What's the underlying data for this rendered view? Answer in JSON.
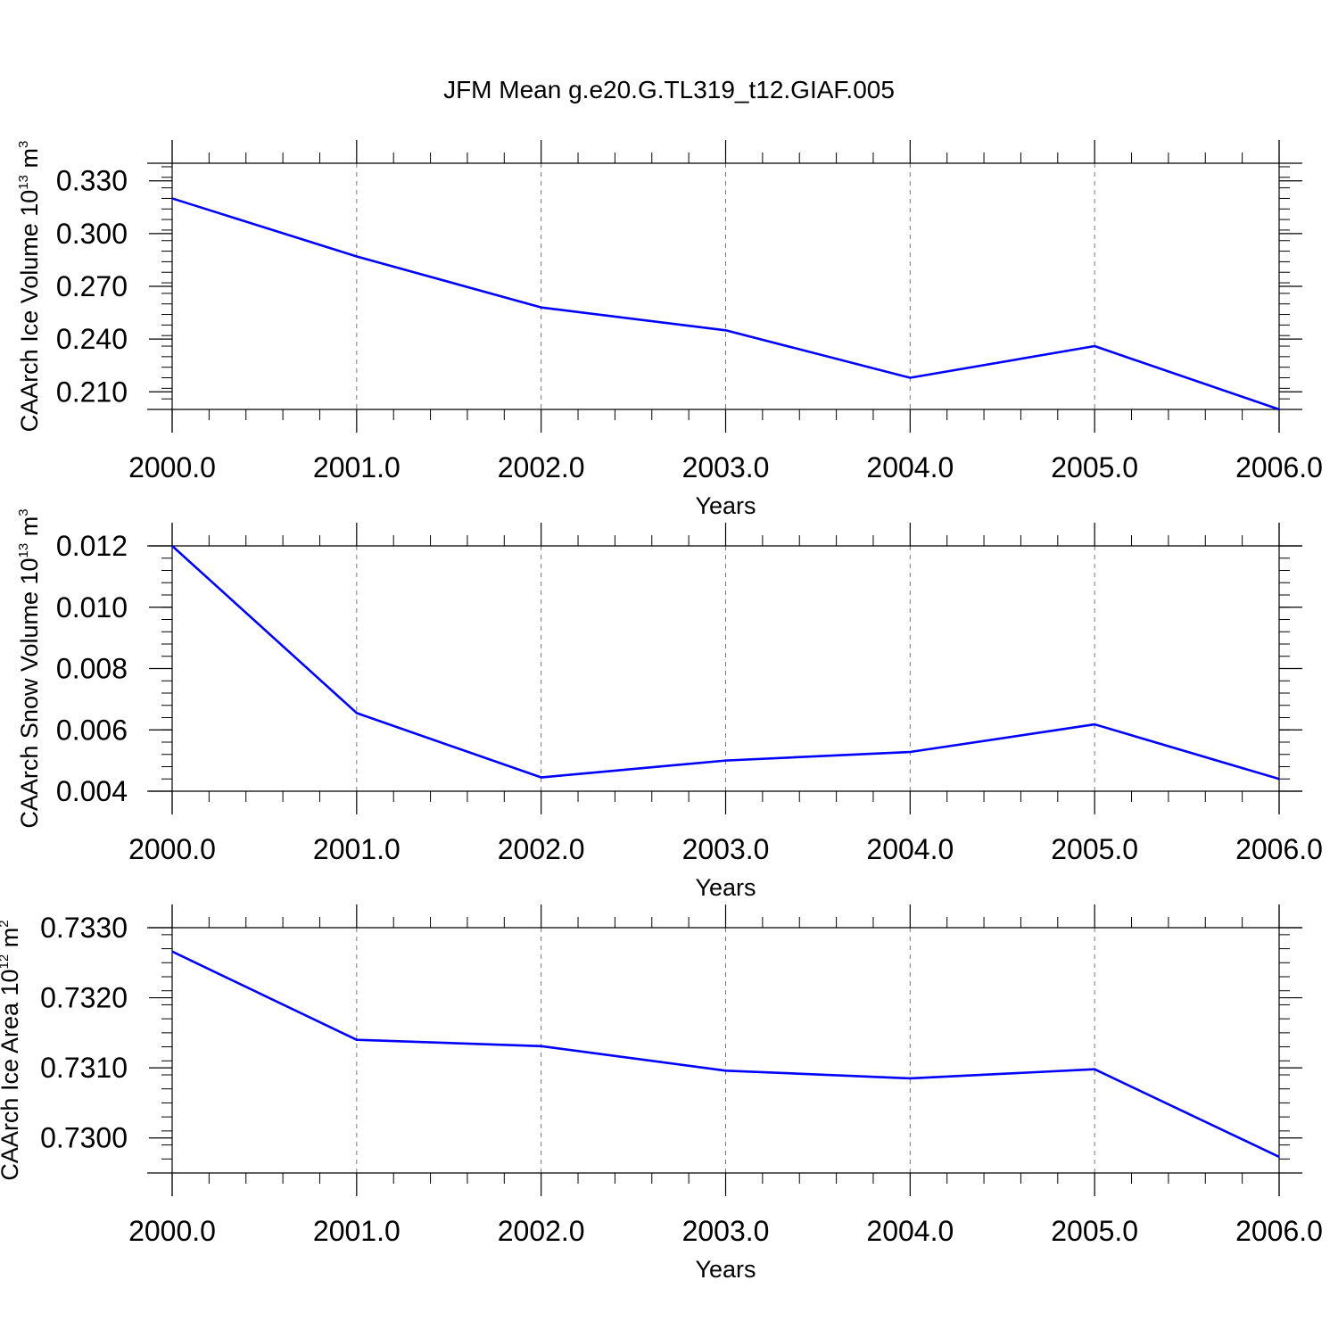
{
  "title": "JFM Mean g.e20.G.TL319_t12.GIAF.005",
  "chart_data": [
    {
      "type": "line",
      "title": "",
      "xlabel": "Years",
      "ylabel": {
        "text": "CAArch Ice Volume 10",
        "exp": "13",
        "unit": " m",
        "unit_exp": "3"
      },
      "x": [
        2000,
        2001,
        2002,
        2003,
        2004,
        2005,
        2006
      ],
      "xlim": [
        2000,
        2006
      ],
      "xticks": [
        "2000.0",
        "2001.0",
        "2002.0",
        "2003.0",
        "2004.0",
        "2005.0",
        "2006.0"
      ],
      "ylim": [
        0.2,
        0.34
      ],
      "yticks": [
        0.21,
        0.24,
        0.27,
        0.3,
        0.33
      ],
      "yticklabels": [
        "0.210",
        "0.240",
        "0.270",
        "0.300",
        "0.330"
      ],
      "yminor": 0.006,
      "xminor": 0.2,
      "series": [
        {
          "values": [
            0.32,
            0.287,
            0.258,
            0.245,
            0.218,
            0.236,
            0.2
          ],
          "color": "#0000ff"
        }
      ],
      "grid": "x-dashed"
    },
    {
      "type": "line",
      "title": "",
      "xlabel": "Years",
      "ylabel": {
        "text": "CAArch Snow Volume 10",
        "exp": "13",
        "unit": " m",
        "unit_exp": "3"
      },
      "x": [
        2000,
        2001,
        2002,
        2003,
        2004,
        2005,
        2006
      ],
      "xlim": [
        2000,
        2006
      ],
      "xticks": [
        "2000.0",
        "2001.0",
        "2002.0",
        "2003.0",
        "2004.0",
        "2005.0",
        "2006.0"
      ],
      "ylim": [
        0.004,
        0.012
      ],
      "yticks": [
        0.004,
        0.006,
        0.008,
        0.01,
        0.012
      ],
      "yticklabels": [
        "0.004",
        "0.006",
        "0.008",
        "0.010",
        "0.012"
      ],
      "yminor": 0.0004,
      "xminor": 0.2,
      "series": [
        {
          "values": [
            0.012,
            0.00655,
            0.00445,
            0.005,
            0.00528,
            0.00618,
            0.0044
          ],
          "color": "#0000ff"
        }
      ],
      "grid": "x-dashed"
    },
    {
      "type": "line",
      "title": "",
      "xlabel": "Years",
      "ylabel": {
        "text": "CAArch Ice Area 10",
        "exp": "12",
        "unit": " m",
        "unit_exp": "2"
      },
      "x": [
        2000,
        2001,
        2002,
        2003,
        2004,
        2005,
        2006
      ],
      "xlim": [
        2000,
        2006
      ],
      "xticks": [
        "2000.0",
        "2001.0",
        "2002.0",
        "2003.0",
        "2004.0",
        "2005.0",
        "2006.0"
      ],
      "ylim": [
        0.7295,
        0.733
      ],
      "yticks": [
        0.73,
        0.731,
        0.732,
        0.733
      ],
      "yticklabels": [
        "0.7300",
        "0.7310",
        "0.7320",
        "0.7330"
      ],
      "yminor": 0.0002,
      "xminor": 0.2,
      "series": [
        {
          "values": [
            0.73266,
            0.7314,
            0.73131,
            0.73096,
            0.73085,
            0.73098,
            0.72973
          ],
          "color": "#0000ff"
        }
      ],
      "grid": "x-dashed"
    }
  ]
}
